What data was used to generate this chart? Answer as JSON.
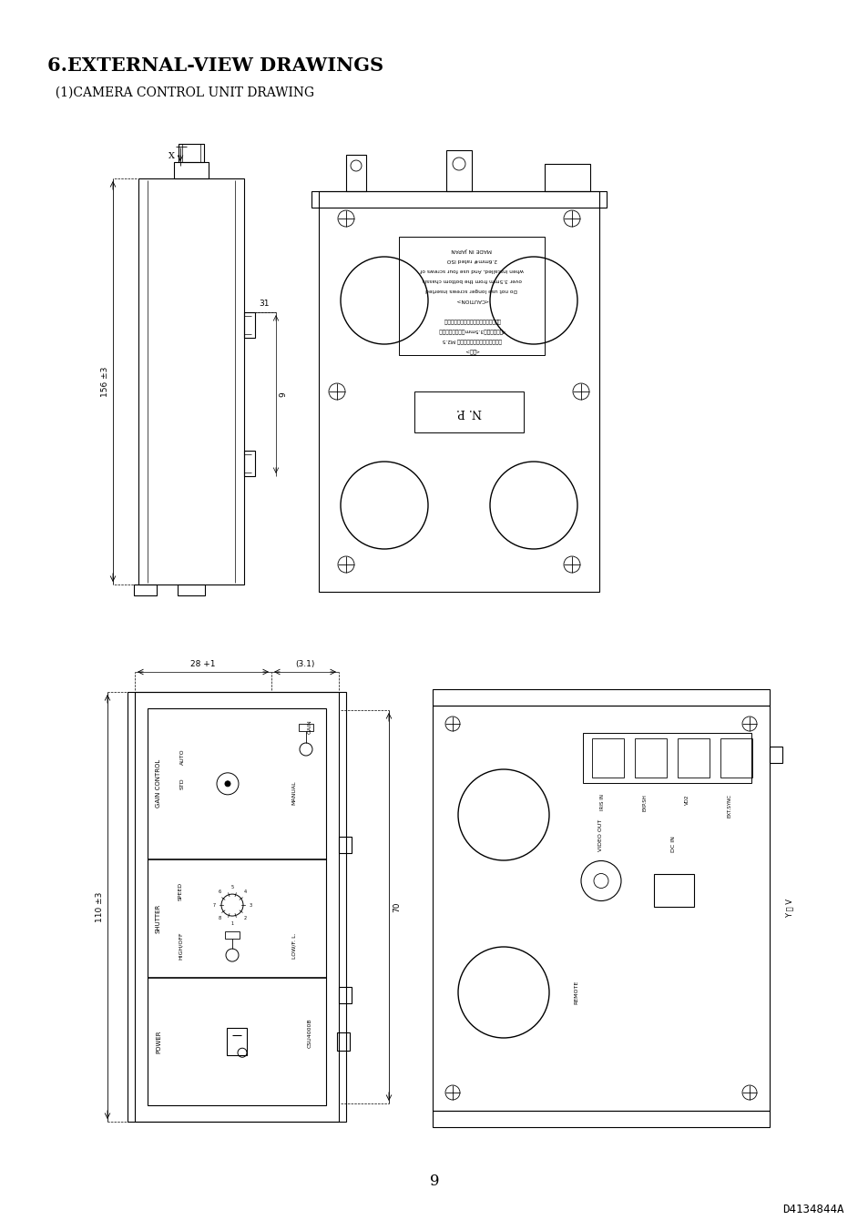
{
  "title": "6.EXTERNAL-VIEW DRAWINGS",
  "subtitle": "  (1)CAMERA CONTROL UNIT DRAWING",
  "page_number": "9",
  "doc_number": "D4134844A",
  "bg_color": "#ffffff",
  "line_color": "#000000",
  "title_fontsize": 15,
  "subtitle_fontsize": 10,
  "dim_fontsize": 6.5,
  "small_fontsize": 5.0
}
